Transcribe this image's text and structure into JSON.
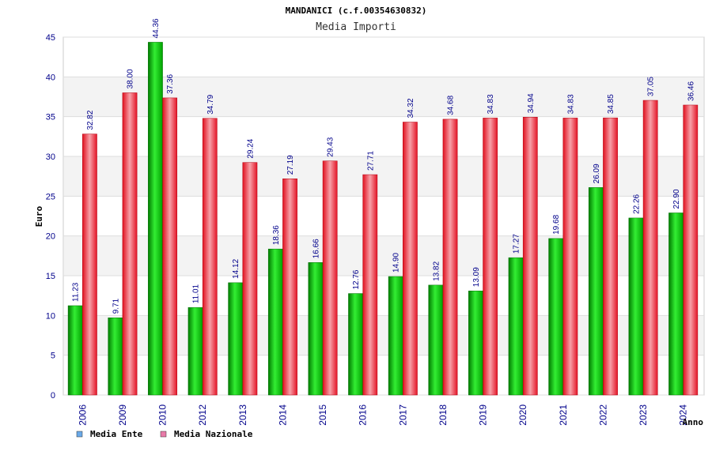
{
  "chart_data": {
    "type": "bar",
    "title": "MANDANICI (c.f.00354630832)",
    "subtitle": "Media Importi",
    "xlabel": "Anno",
    "ylabel": "Euro",
    "ylim": [
      0,
      45
    ],
    "yticks": [
      0,
      5,
      10,
      15,
      20,
      25,
      30,
      35,
      40,
      45
    ],
    "grid": true,
    "legend_position": "bottom-left",
    "categories": [
      "2006",
      "2009",
      "2010",
      "2012",
      "2013",
      "2014",
      "2015",
      "2016",
      "2017",
      "2018",
      "2019",
      "2020",
      "2021",
      "2022",
      "2023",
      "2024"
    ],
    "series": [
      {
        "name": "Media Ente",
        "color": "#00aa00",
        "legend_color": "#6aa9e8",
        "values": [
          11.23,
          9.71,
          44.36,
          11.01,
          14.12,
          18.36,
          16.66,
          12.76,
          14.9,
          13.82,
          13.09,
          17.27,
          19.68,
          26.09,
          22.26,
          22.9
        ],
        "labels": [
          "11.23",
          "9.71",
          "44.36",
          "11.01",
          "14.12",
          "18.36",
          "16.66",
          "12.76",
          "14.90",
          "13.82",
          "13.09",
          "17.27",
          "19.68",
          "26.09",
          "22.26",
          "22.90"
        ]
      },
      {
        "name": "Media Nazionale",
        "color": "#ee1c2a",
        "legend_color": "#e87aa8",
        "values": [
          32.82,
          38.0,
          37.36,
          34.79,
          29.24,
          27.19,
          29.43,
          27.71,
          34.32,
          34.68,
          34.83,
          34.94,
          34.83,
          34.85,
          37.05,
          36.46
        ],
        "labels": [
          "32.82",
          "38.00",
          "37.36",
          "34.79",
          "29.24",
          "27.19",
          "29.43",
          "27.71",
          "34.32",
          "34.68",
          "34.83",
          "34.94",
          "34.83",
          "34.85",
          "37.05",
          "36.46"
        ]
      }
    ]
  }
}
